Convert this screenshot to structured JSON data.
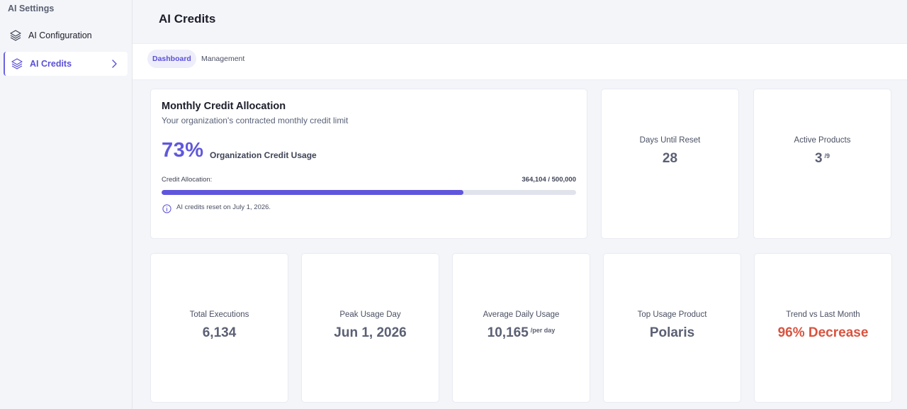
{
  "sidebar": {
    "title": "AI Settings",
    "items": [
      {
        "label": "AI Configuration",
        "icon": "layers-icon"
      },
      {
        "label": "AI Credits",
        "icon": "layers-icon",
        "active": true
      }
    ]
  },
  "header": {
    "title": "AI Credits"
  },
  "tabs": [
    {
      "label": "Dashboard",
      "active": true
    },
    {
      "label": "Management",
      "active": false
    }
  ],
  "allocation": {
    "title": "Monthly Credit Allocation",
    "subtitle": "Your organization's contracted monthly credit limit",
    "percent": "73%",
    "percent_label": "Organization Credit Usage",
    "allocation_label": "Credit Allocation:",
    "allocation_value": "364,104 / 500,000",
    "progress_fraction": 0.728,
    "reset_note": "AI credits reset on July 1, 2026."
  },
  "stats": {
    "days_until_reset": {
      "label": "Days Until Reset",
      "value": "28"
    },
    "active_products": {
      "label": "Active Products",
      "value": "3",
      "suffix": "/9"
    },
    "total_executions": {
      "label": "Total Executions",
      "value": "6,134"
    },
    "peak_usage_day": {
      "label": "Peak Usage Day",
      "value": "Jun 1, 2026"
    },
    "average_daily_usage": {
      "label": "Average Daily Usage",
      "value": "10,165",
      "suffix": "/per day"
    },
    "top_usage_product": {
      "label": "Top Usage Product",
      "value": "Polaris"
    },
    "trend": {
      "label": "Trend vs Last Month",
      "value": "96% Decrease",
      "color": "#d9533f"
    }
  },
  "colors": {
    "accent": "#5f55dd",
    "danger": "#d9533f"
  }
}
